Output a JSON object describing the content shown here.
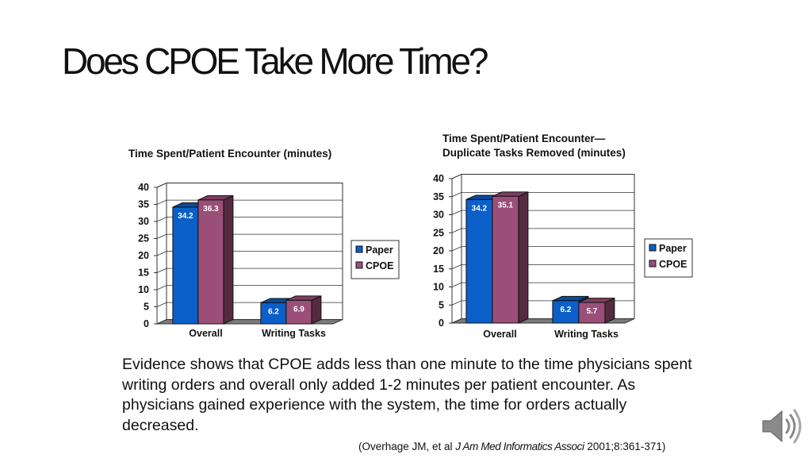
{
  "slide": {
    "title": "Does CPOE Take More Time?",
    "body": "Evidence shows that CPOE adds less than one minute to the time physicians spent writing orders and overall only added 1-2 minutes per patient encounter. As physicians gained experience with the system, the time for orders actually decreased.",
    "citation_prefix": "(Overhage JM, et al ",
    "citation_journal": "J Am Med Informatics Associ",
    "citation_suffix": " 2001;8:361-371)"
  },
  "icons": {
    "audio": "speaker-icon"
  },
  "colors": {
    "paper": "#0a5fc9",
    "cpoe": "#9b4f78",
    "floor": "#7a7a7a"
  },
  "chart_data": [
    {
      "type": "bar",
      "title_lines": [
        "Time Spent/Patient Encounter (minutes)"
      ],
      "categories": [
        "Overall",
        "Writing Tasks"
      ],
      "series": [
        {
          "name": "Paper",
          "values": [
            34.2,
            6.2
          ]
        },
        {
          "name": "CPOE",
          "values": [
            36.3,
            6.9
          ]
        }
      ],
      "ylim": [
        0,
        40
      ],
      "yticks": [
        0,
        5,
        10,
        15,
        20,
        25,
        30,
        35,
        40
      ],
      "grid": true,
      "legend": "right",
      "style": "3d"
    },
    {
      "type": "bar",
      "title_lines": [
        "Time Spent/Patient Encounter—",
        "Duplicate Tasks Removed (minutes)"
      ],
      "categories": [
        "Overall",
        "Writing Tasks"
      ],
      "series": [
        {
          "name": "Paper",
          "values": [
            34.2,
            6.2
          ]
        },
        {
          "name": "CPOE",
          "values": [
            35.1,
            5.7
          ]
        }
      ],
      "ylim": [
        0,
        40
      ],
      "yticks": [
        0,
        5,
        10,
        15,
        20,
        25,
        30,
        35,
        40
      ],
      "grid": true,
      "legend": "right",
      "style": "3d"
    }
  ]
}
